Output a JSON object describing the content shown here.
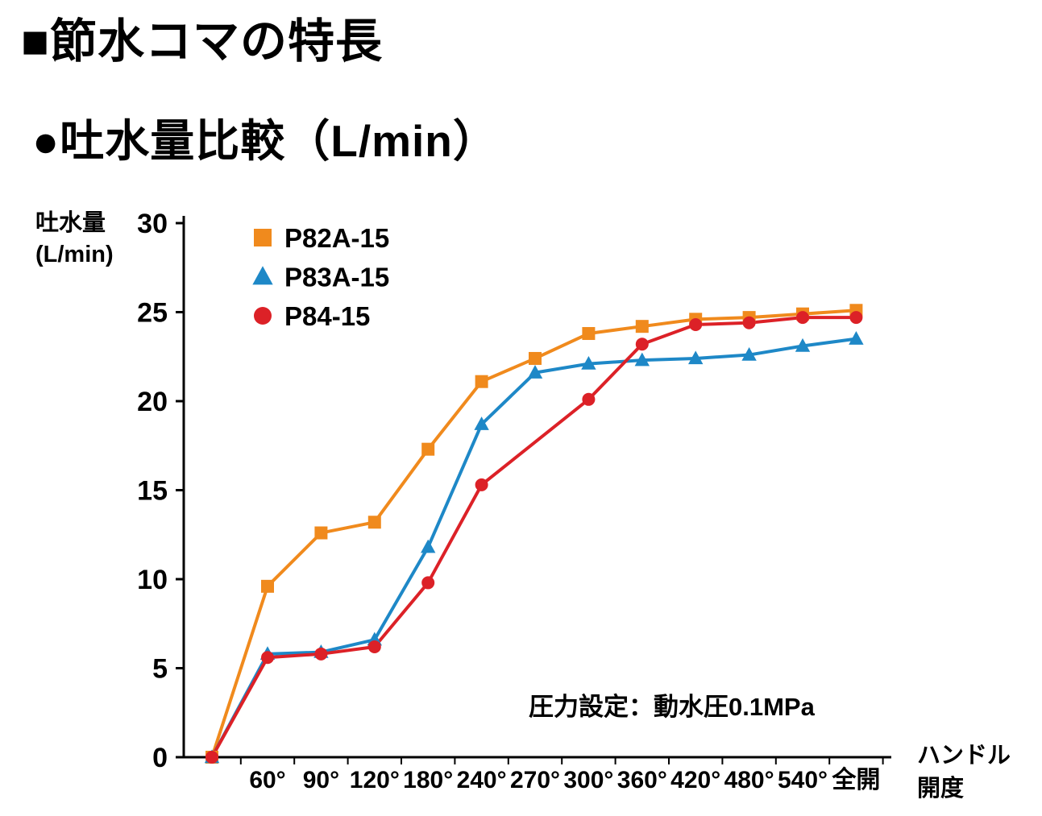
{
  "page": {
    "section_title": "■節水コマの特長",
    "chart_heading": "●吐水量比較（L/min）"
  },
  "chart_data": {
    "type": "line",
    "title": "吐水量比較（L/min）",
    "ylabel_line1": "吐水量",
    "ylabel_line2": "(L/min)",
    "xlabel_line1": "ハンドル",
    "xlabel_line2": "開度",
    "annotation": "圧力設定：動水圧0.1MPa",
    "ylim": [
      0,
      30
    ],
    "yticks": [
      0,
      5,
      10,
      15,
      20,
      25,
      30
    ],
    "grid": false,
    "legend_position": "top-left-inside",
    "categories": [
      "",
      "60°",
      "90°",
      "120°",
      "180°",
      "240°",
      "270°",
      "300°",
      "360°",
      "420°",
      "480°",
      "540°",
      "全開"
    ],
    "series": [
      {
        "name": "P82A-15",
        "color": "#F08A1D",
        "marker": "square",
        "values": [
          0,
          9.6,
          12.6,
          13.2,
          17.3,
          21.1,
          22.4,
          23.8,
          24.2,
          24.6,
          24.7,
          24.9,
          25.1
        ]
      },
      {
        "name": "P83A-15",
        "color": "#1E88C7",
        "marker": "triangle",
        "values": [
          0,
          5.8,
          5.9,
          6.6,
          11.8,
          18.7,
          21.6,
          22.1,
          22.3,
          22.4,
          22.6,
          23.1,
          23.5
        ]
      },
      {
        "name": "P84-15",
        "color": "#DC2127",
        "marker": "circle",
        "values": [
          0,
          5.6,
          5.8,
          6.2,
          9.8,
          15.3,
          17.7,
          20.1,
          23.2,
          24.3,
          24.4,
          24.7,
          24.7
        ],
        "skip_markers": [
          6
        ]
      }
    ]
  }
}
